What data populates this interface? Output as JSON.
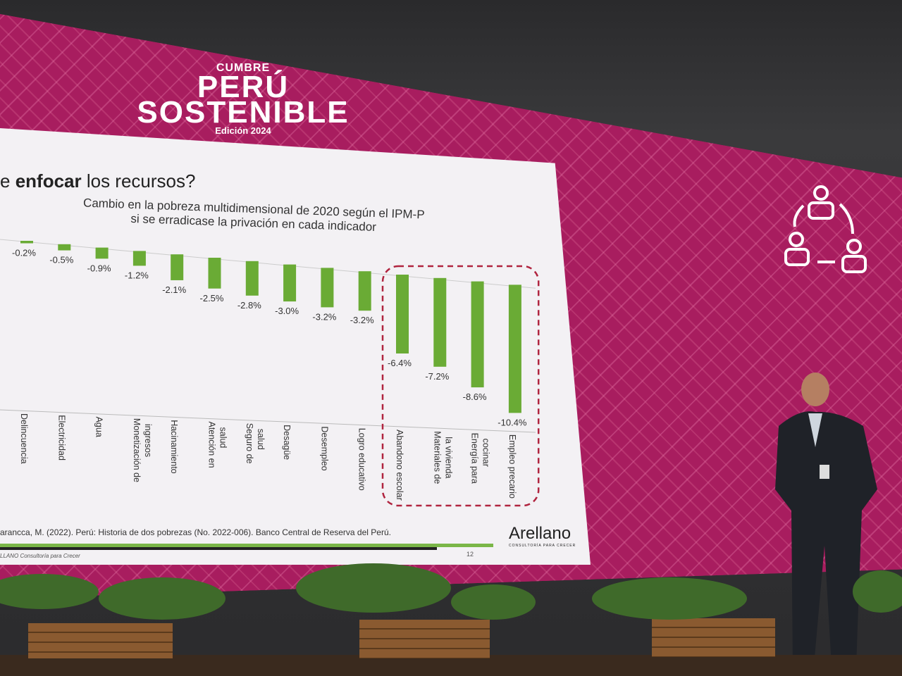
{
  "event_logo": {
    "line1": "CUMBRE",
    "line2": "PERÚ",
    "line3": "SOSTENIBLE",
    "line4": "Edición 2024"
  },
  "slide": {
    "heading_prefix": "e ",
    "heading_bold": "enfocar",
    "heading_rest": " los recursos?",
    "source": "arancca, M. (2022). Perú: Historia de dos pobrezas (No. 2022-006). Banco Central de Reserva del Perú.",
    "footer": "LLANO Consultoría para Crecer",
    "page_number": "12",
    "brand": "Arellano",
    "brand_tagline": "CONSULTORÍA PARA CRECER"
  },
  "icon": "people-cycle-icon",
  "chart_data": {
    "type": "bar",
    "title": "Cambio en la pobreza multidimensional de 2020 según el IPM-P si se erradicase la privación en cada indicador",
    "title_line1": "Cambio en la pobreza multidimensional de 2020 según el IPM-P",
    "title_line2": "si se erradicase la privación en cada indicador",
    "categories": [
      "Delincuencia",
      "Electricidad",
      "Agua",
      "Monetización de ingresos",
      "Hacinamiento",
      "Atención en salud",
      "Seguro de salud",
      "Desagüe",
      "Desempleo",
      "Logro educativo",
      "Abandono escolar",
      "Materiales de la vivienda",
      "Energía para cocinar",
      "Empleo precario"
    ],
    "values": [
      -0.2,
      -0.5,
      -0.9,
      -1.2,
      -2.1,
      -2.5,
      -2.8,
      -3.0,
      -3.2,
      -3.2,
      -6.4,
      -7.2,
      -8.6,
      -10.4
    ],
    "labels": [
      "-0.2%",
      "-0.5%",
      "-0.9%",
      "-1.2%",
      "-2.1%",
      "-2.5%",
      "-2.8%",
      "-3.0%",
      "-3.2%",
      "-3.2%",
      "-6.4%",
      "-7.2%",
      "-8.6%",
      "-10.4%"
    ],
    "highlighted_categories": [
      "Abandono escolar",
      "Materiales de la vivienda",
      "Energía para cocinar",
      "Empleo precario"
    ],
    "bar_color": "#6aab35",
    "highlight_color": "#b0243f",
    "xlabel": "",
    "ylabel": ""
  }
}
